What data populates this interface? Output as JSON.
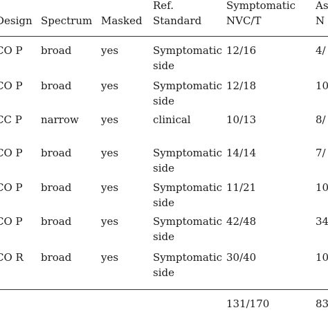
{
  "header": {
    "design": "Design",
    "spectrum": "Spectrum",
    "masked": "Masked",
    "ref_line1": "Ref.",
    "ref_line2": "Standard",
    "symp_line1": "Symptomatic",
    "symp_line2": "NVC/T",
    "asym_line1": "As",
    "asym_line2": "N"
  },
  "rows": [
    {
      "design": "CO P",
      "spectrum": "broad",
      "masked": "yes",
      "ref_line1": "Symptomatic",
      "ref_line2": "side",
      "symptomatic": "12/16",
      "asymptomatic": "4/"
    },
    {
      "design": "CO P",
      "spectrum": "broad",
      "masked": "yes",
      "ref_line1": "Symptomatic",
      "ref_line2": "side",
      "symptomatic": "12/18",
      "asymptomatic": "10"
    },
    {
      "design": "CC P",
      "spectrum": "narrow",
      "masked": "yes",
      "ref_line1": "clinical",
      "ref_line2": "",
      "symptomatic": "10/13",
      "asymptomatic": "8/"
    },
    {
      "design": "CO P",
      "spectrum": "broad",
      "masked": "yes",
      "ref_line1": "Symptomatic",
      "ref_line2": "side",
      "symptomatic": "14/14",
      "asymptomatic": "7/"
    },
    {
      "design": "CO P",
      "spectrum": "broad",
      "masked": "yes",
      "ref_line1": "Symptomatic",
      "ref_line2": "side",
      "symptomatic": "11/21",
      "asymptomatic": "10"
    },
    {
      "design": "CO P",
      "spectrum": "broad",
      "masked": "yes",
      "ref_line1": "Symptomatic",
      "ref_line2": "side",
      "symptomatic": "42/48",
      "asymptomatic": "34"
    },
    {
      "design": "CO R",
      "spectrum": "broad",
      "masked": "yes",
      "ref_line1": "Symptomatic",
      "ref_line2": "side",
      "symptomatic": "30/40",
      "asymptomatic": "10"
    }
  ],
  "totals": {
    "symptomatic": "131/170",
    "asymptomatic": "83"
  }
}
